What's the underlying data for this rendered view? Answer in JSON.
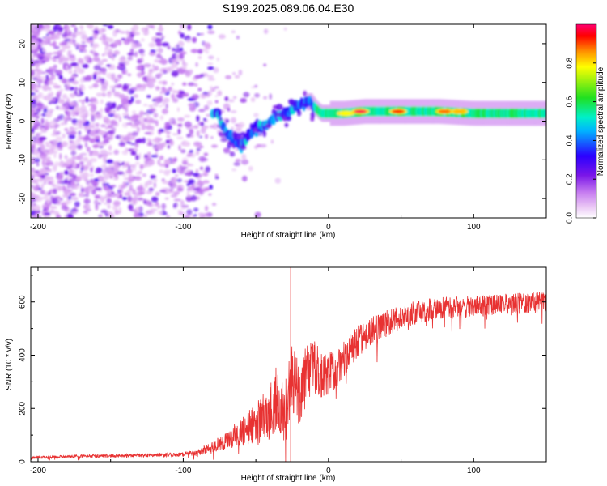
{
  "title": "S199.2025.089.06.04.E30",
  "chart_data": [
    {
      "type": "heatmap",
      "xlabel": "Height of straight line (km)",
      "ylabel": "Frequency (Hz)",
      "xlim": [
        -205,
        150
      ],
      "ylim": [
        -25,
        25
      ],
      "xticks": [
        -200,
        -100,
        0,
        100
      ],
      "yticks": [
        -20,
        -10,
        0,
        10,
        20
      ],
      "colorbar": {
        "label": "Normalized spectral amplitude",
        "range": [
          0,
          1
        ],
        "ticks": [
          0.0,
          0.2,
          0.4,
          0.6,
          0.8
        ],
        "colormap": [
          "#ffffff",
          "#e9c4f5",
          "#c77ef0",
          "#7a16e8",
          "#2b00ff",
          "#00b4ff",
          "#00f0c8",
          "#20e020",
          "#ffff00",
          "#ff9000",
          "#ff0000",
          "#ff0070"
        ]
      },
      "ridge": [
        {
          "x": -75,
          "f": 0
        },
        {
          "x": -70,
          "f": -3
        },
        {
          "x": -65,
          "f": -5
        },
        {
          "x": -60,
          "f": -6
        },
        {
          "x": -55,
          "f": -4
        },
        {
          "x": -50,
          "f": -2
        },
        {
          "x": -45,
          "f": -1
        },
        {
          "x": -40,
          "f": 0
        },
        {
          "x": -35,
          "f": 1
        },
        {
          "x": -30,
          "f": 2
        },
        {
          "x": -25,
          "f": 3
        },
        {
          "x": -20,
          "f": 4
        },
        {
          "x": -15,
          "f": 5
        },
        {
          "x": -12,
          "f": 5
        },
        {
          "x": -8,
          "f": 3
        },
        {
          "x": -5,
          "f": 2
        },
        {
          "x": 0,
          "f": 2
        },
        {
          "x": 10,
          "f": 2
        },
        {
          "x": 25,
          "f": 2.5
        },
        {
          "x": 50,
          "f": 2.5
        },
        {
          "x": 75,
          "f": 2.5
        },
        {
          "x": 100,
          "f": 2
        },
        {
          "x": 125,
          "f": 2
        },
        {
          "x": 150,
          "f": 2
        }
      ],
      "hotspots": [
        {
          "x": 22,
          "f": 2.5,
          "level": 0.9
        },
        {
          "x": 48,
          "f": 2.5,
          "level": 0.85
        },
        {
          "x": 80,
          "f": 2.5,
          "level": 0.8
        },
        {
          "x": 90,
          "f": 2.5,
          "level": 0.75
        },
        {
          "x": 12,
          "f": 2,
          "level": 0.7
        }
      ]
    },
    {
      "type": "line",
      "xlabel": "Height of straight line (km)",
      "ylabel": "SNR (10 * v/v)",
      "xlim": [
        -205,
        150
      ],
      "ylim": [
        0,
        730
      ],
      "xticks": [
        -200,
        -100,
        0,
        100
      ],
      "yticks": [
        0,
        200,
        400,
        600
      ],
      "color": "#e83232",
      "x": [
        -205,
        -190,
        -175,
        -160,
        -145,
        -130,
        -115,
        -100,
        -90,
        -80,
        -70,
        -60,
        -50,
        -40,
        -35,
        -30,
        -25,
        -20,
        -15,
        -10,
        -5,
        0,
        5,
        10,
        15,
        20,
        25,
        30,
        40,
        50,
        60,
        75,
        90,
        105,
        120,
        135,
        150
      ],
      "y": [
        15,
        18,
        20,
        22,
        22,
        24,
        25,
        28,
        35,
        55,
        80,
        110,
        140,
        190,
        260,
        180,
        320,
        250,
        330,
        360,
        320,
        330,
        350,
        380,
        420,
        450,
        470,
        490,
        520,
        540,
        560,
        575,
        580,
        585,
        590,
        595,
        600
      ],
      "spike": {
        "x": -26,
        "y": 730
      },
      "noise_amplitude": [
        5,
        5,
        6,
        6,
        6,
        7,
        7,
        8,
        12,
        20,
        35,
        55,
        80,
        110,
        130,
        120,
        140,
        120,
        110,
        100,
        90,
        80,
        75,
        70,
        65,
        60,
        55,
        55,
        50,
        48,
        45,
        42,
        42,
        40,
        40,
        40,
        40
      ]
    }
  ]
}
